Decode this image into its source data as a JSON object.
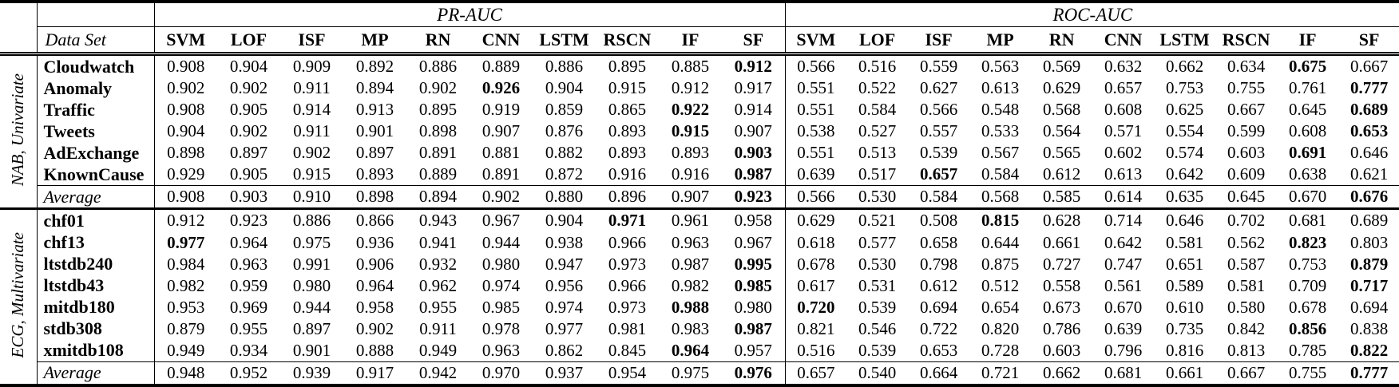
{
  "table": {
    "dataset_header": "Data Set",
    "groups": [
      {
        "label": "PR-AUC"
      },
      {
        "label": "ROC-AUC"
      }
    ],
    "methods": [
      "SVM",
      "LOF",
      "ISF",
      "MP",
      "RN",
      "CNN",
      "LSTM",
      "RSCN",
      "IF",
      "SF"
    ],
    "sections": [
      {
        "side_label": "NAB, Univariate",
        "rows": [
          {
            "label": "Cloudwatch",
            "avg": false,
            "pr": [
              "0.908",
              "0.904",
              "0.909",
              "0.892",
              "0.886",
              "0.889",
              "0.886",
              "0.895",
              "0.885",
              "0.912"
            ],
            "pr_bold": 9,
            "roc": [
              "0.566",
              "0.516",
              "0.559",
              "0.563",
              "0.569",
              "0.632",
              "0.662",
              "0.634",
              "0.675",
              "0.667"
            ],
            "roc_bold": 8
          },
          {
            "label": "Anomaly",
            "avg": false,
            "pr": [
              "0.902",
              "0.902",
              "0.911",
              "0.894",
              "0.902",
              "0.926",
              "0.904",
              "0.915",
              "0.912",
              "0.917"
            ],
            "pr_bold": 5,
            "roc": [
              "0.551",
              "0.522",
              "0.627",
              "0.613",
              "0.629",
              "0.657",
              "0.753",
              "0.755",
              "0.761",
              "0.777"
            ],
            "roc_bold": 9
          },
          {
            "label": "Traffic",
            "avg": false,
            "pr": [
              "0.908",
              "0.905",
              "0.914",
              "0.913",
              "0.895",
              "0.919",
              "0.859",
              "0.865",
              "0.922",
              "0.914"
            ],
            "pr_bold": 8,
            "roc": [
              "0.551",
              "0.584",
              "0.566",
              "0.548",
              "0.568",
              "0.608",
              "0.625",
              "0.667",
              "0.645",
              "0.689"
            ],
            "roc_bold": 9
          },
          {
            "label": "Tweets",
            "avg": false,
            "pr": [
              "0.904",
              "0.902",
              "0.911",
              "0.901",
              "0.898",
              "0.907",
              "0.876",
              "0.893",
              "0.915",
              "0.907"
            ],
            "pr_bold": 8,
            "roc": [
              "0.538",
              "0.527",
              "0.557",
              "0.533",
              "0.564",
              "0.571",
              "0.554",
              "0.599",
              "0.608",
              "0.653"
            ],
            "roc_bold": 9
          },
          {
            "label": "AdExchange",
            "avg": false,
            "pr": [
              "0.898",
              "0.897",
              "0.902",
              "0.897",
              "0.891",
              "0.881",
              "0.882",
              "0.893",
              "0.893",
              "0.903"
            ],
            "pr_bold": 9,
            "roc": [
              "0.551",
              "0.513",
              "0.539",
              "0.567",
              "0.565",
              "0.602",
              "0.574",
              "0.603",
              "0.691",
              "0.646"
            ],
            "roc_bold": 8
          },
          {
            "label": "KnownCause",
            "avg": false,
            "pr": [
              "0.929",
              "0.905",
              "0.915",
              "0.893",
              "0.889",
              "0.891",
              "0.872",
              "0.916",
              "0.916",
              "0.987"
            ],
            "pr_bold": 9,
            "roc": [
              "0.639",
              "0.517",
              "0.657",
              "0.584",
              "0.612",
              "0.613",
              "0.642",
              "0.609",
              "0.638",
              "0.621"
            ],
            "roc_bold": 2
          },
          {
            "label": "Average",
            "avg": true,
            "pr": [
              "0.908",
              "0.903",
              "0.910",
              "0.898",
              "0.894",
              "0.902",
              "0.880",
              "0.896",
              "0.907",
              "0.923"
            ],
            "pr_bold": 9,
            "roc": [
              "0.566",
              "0.530",
              "0.584",
              "0.568",
              "0.585",
              "0.614",
              "0.635",
              "0.645",
              "0.670",
              "0.676"
            ],
            "roc_bold": 9
          }
        ]
      },
      {
        "side_label": "ECG, Multivariate",
        "rows": [
          {
            "label": "chf01",
            "avg": false,
            "pr": [
              "0.912",
              "0.923",
              "0.886",
              "0.866",
              "0.943",
              "0.967",
              "0.904",
              "0.971",
              "0.961",
              "0.958"
            ],
            "pr_bold": 7,
            "roc": [
              "0.629",
              "0.521",
              "0.508",
              "0.815",
              "0.628",
              "0.714",
              "0.646",
              "0.702",
              "0.681",
              "0.689"
            ],
            "roc_bold": 3
          },
          {
            "label": "chf13",
            "avg": false,
            "pr": [
              "0.977",
              "0.964",
              "0.975",
              "0.936",
              "0.941",
              "0.944",
              "0.938",
              "0.966",
              "0.963",
              "0.967"
            ],
            "pr_bold": 0,
            "roc": [
              "0.618",
              "0.577",
              "0.658",
              "0.644",
              "0.661",
              "0.642",
              "0.581",
              "0.562",
              "0.823",
              "0.803"
            ],
            "roc_bold": 8
          },
          {
            "label": "ltstdb240",
            "avg": false,
            "pr": [
              "0.984",
              "0.963",
              "0.991",
              "0.906",
              "0.932",
              "0.980",
              "0.947",
              "0.973",
              "0.987",
              "0.995"
            ],
            "pr_bold": 9,
            "roc": [
              "0.678",
              "0.530",
              "0.798",
              "0.875",
              "0.727",
              "0.747",
              "0.651",
              "0.587",
              "0.753",
              "0.879"
            ],
            "roc_bold": 9
          },
          {
            "label": "ltstdb43",
            "avg": false,
            "pr": [
              "0.982",
              "0.959",
              "0.980",
              "0.964",
              "0.962",
              "0.974",
              "0.956",
              "0.966",
              "0.982",
              "0.985"
            ],
            "pr_bold": 9,
            "roc": [
              "0.617",
              "0.531",
              "0.612",
              "0.512",
              "0.558",
              "0.561",
              "0.589",
              "0.581",
              "0.709",
              "0.717"
            ],
            "roc_bold": 9
          },
          {
            "label": "mitdb180",
            "avg": false,
            "pr": [
              "0.953",
              "0.969",
              "0.944",
              "0.958",
              "0.955",
              "0.985",
              "0.974",
              "0.973",
              "0.988",
              "0.980"
            ],
            "pr_bold": 8,
            "roc": [
              "0.720",
              "0.539",
              "0.694",
              "0.654",
              "0.673",
              "0.670",
              "0.610",
              "0.580",
              "0.678",
              "0.694"
            ],
            "roc_bold": 0
          },
          {
            "label": "stdb308",
            "avg": false,
            "pr": [
              "0.879",
              "0.955",
              "0.897",
              "0.902",
              "0.911",
              "0.978",
              "0.977",
              "0.981",
              "0.983",
              "0.987"
            ],
            "pr_bold": 9,
            "roc": [
              "0.821",
              "0.546",
              "0.722",
              "0.820",
              "0.786",
              "0.639",
              "0.735",
              "0.842",
              "0.856",
              "0.838"
            ],
            "roc_bold": 8
          },
          {
            "label": "xmitdb108",
            "avg": false,
            "pr": [
              "0.949",
              "0.934",
              "0.901",
              "0.888",
              "0.949",
              "0.963",
              "0.862",
              "0.845",
              "0.964",
              "0.957"
            ],
            "pr_bold": 8,
            "roc": [
              "0.516",
              "0.539",
              "0.653",
              "0.728",
              "0.603",
              "0.796",
              "0.816",
              "0.813",
              "0.785",
              "0.822"
            ],
            "roc_bold": 9
          },
          {
            "label": "Average",
            "avg": true,
            "pr": [
              "0.948",
              "0.952",
              "0.939",
              "0.917",
              "0.942",
              "0.970",
              "0.937",
              "0.954",
              "0.975",
              "0.976"
            ],
            "pr_bold": 9,
            "roc": [
              "0.657",
              "0.540",
              "0.664",
              "0.721",
              "0.662",
              "0.681",
              "0.661",
              "0.667",
              "0.755",
              "0.777"
            ],
            "roc_bold": 9
          }
        ]
      }
    ]
  }
}
